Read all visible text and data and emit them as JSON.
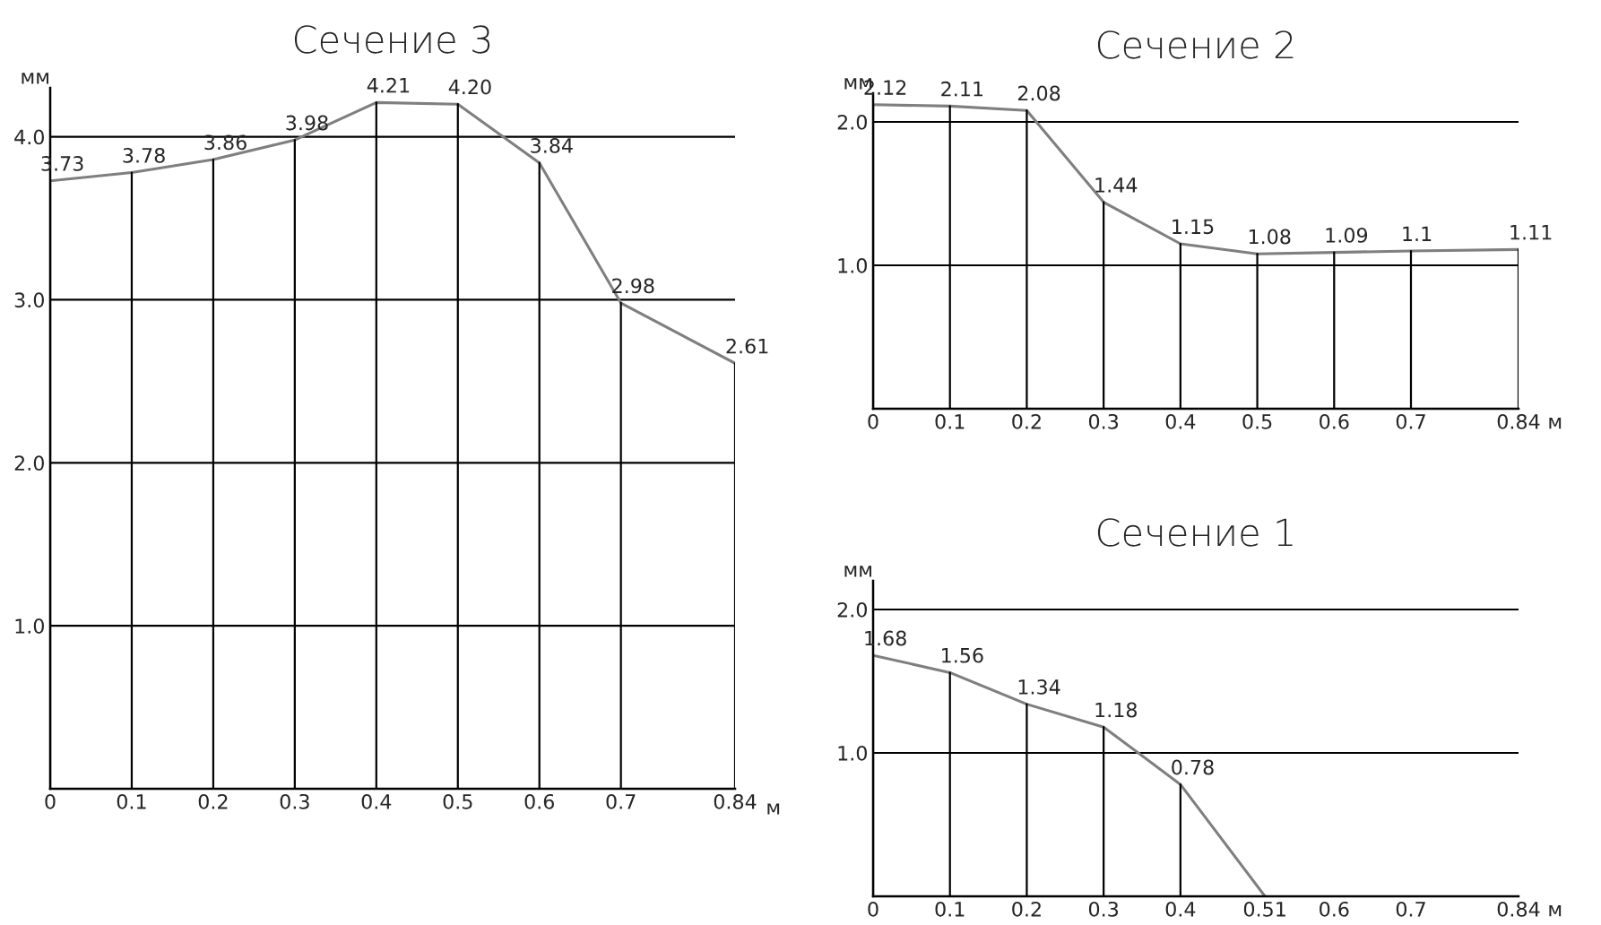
{
  "chart_data": [
    {
      "type": "line",
      "title": "Сечение 3",
      "xlabel": "м",
      "ylabel": "мм",
      "x": [
        0,
        0.1,
        0.2,
        0.3,
        0.4,
        0.5,
        0.6,
        0.7,
        0.84
      ],
      "series": [
        {
          "color": "#7f7f7f",
          "values": [
            3.73,
            3.78,
            3.86,
            3.98,
            4.21,
            4.2,
            3.84,
            2.98,
            2.61
          ]
        }
      ],
      "value_labels": [
        "3.73",
        "3.78",
        "3.86",
        "3.98",
        "4.21",
        "4.20",
        "3.84",
        "2.98",
        "2.61"
      ],
      "grid": true,
      "xlim": [
        0,
        0.84
      ],
      "ylim": [
        0,
        4.3
      ],
      "xticks": [
        0,
        0.1,
        0.2,
        0.3,
        0.4,
        0.5,
        0.6,
        0.7,
        0.84
      ],
      "yticks": [
        {
          "value": 1,
          "label": "1.0"
        },
        {
          "value": 2,
          "label": "2.0"
        },
        {
          "value": 3,
          "label": "3.0"
        },
        {
          "value": 4,
          "label": "4.0"
        }
      ]
    },
    {
      "type": "line",
      "title": "Сечение 2",
      "xlabel": "м",
      "ylabel": "мм",
      "x": [
        0,
        0.1,
        0.2,
        0.3,
        0.4,
        0.5,
        0.6,
        0.7,
        0.84
      ],
      "series": [
        {
          "color": "#7f7f7f",
          "values": [
            2.12,
            2.11,
            2.08,
            1.44,
            1.15,
            1.08,
            1.09,
            1.1,
            1.11
          ]
        }
      ],
      "value_labels": [
        "2.12",
        "2.11",
        "2.08",
        "1.44",
        "1.15",
        "1.08",
        "1.09",
        "1.1",
        "1.11"
      ],
      "grid": true,
      "xlim": [
        0,
        0.84
      ],
      "ylim": [
        0,
        2.2
      ],
      "xticks": [
        0,
        0.1,
        0.2,
        0.3,
        0.4,
        0.5,
        0.6,
        0.7,
        0.84
      ],
      "yticks": [
        {
          "value": 1,
          "label": "1.0"
        },
        {
          "value": 2,
          "label": "2.0"
        }
      ]
    },
    {
      "type": "line",
      "title": "Сечение 1",
      "xlabel": "м",
      "ylabel": "мм",
      "x": [
        0,
        0.1,
        0.2,
        0.3,
        0.4,
        0.51
      ],
      "series": [
        {
          "color": "#7f7f7f",
          "values": [
            1.68,
            1.56,
            1.34,
            1.18,
            0.78,
            0
          ]
        }
      ],
      "value_labels": [
        "1.68",
        "1.56",
        "1.34",
        "1.18",
        "0.78",
        null
      ],
      "grid": true,
      "xlim": [
        0,
        0.84
      ],
      "ylim": [
        0,
        2.2
      ],
      "xticks": [
        0,
        0.1,
        0.2,
        0.3,
        0.4,
        0.51,
        0.6,
        0.7,
        0.84
      ],
      "yticks": [
        {
          "value": 1,
          "label": "1.0"
        },
        {
          "value": 2,
          "label": "2.0"
        }
      ]
    }
  ]
}
